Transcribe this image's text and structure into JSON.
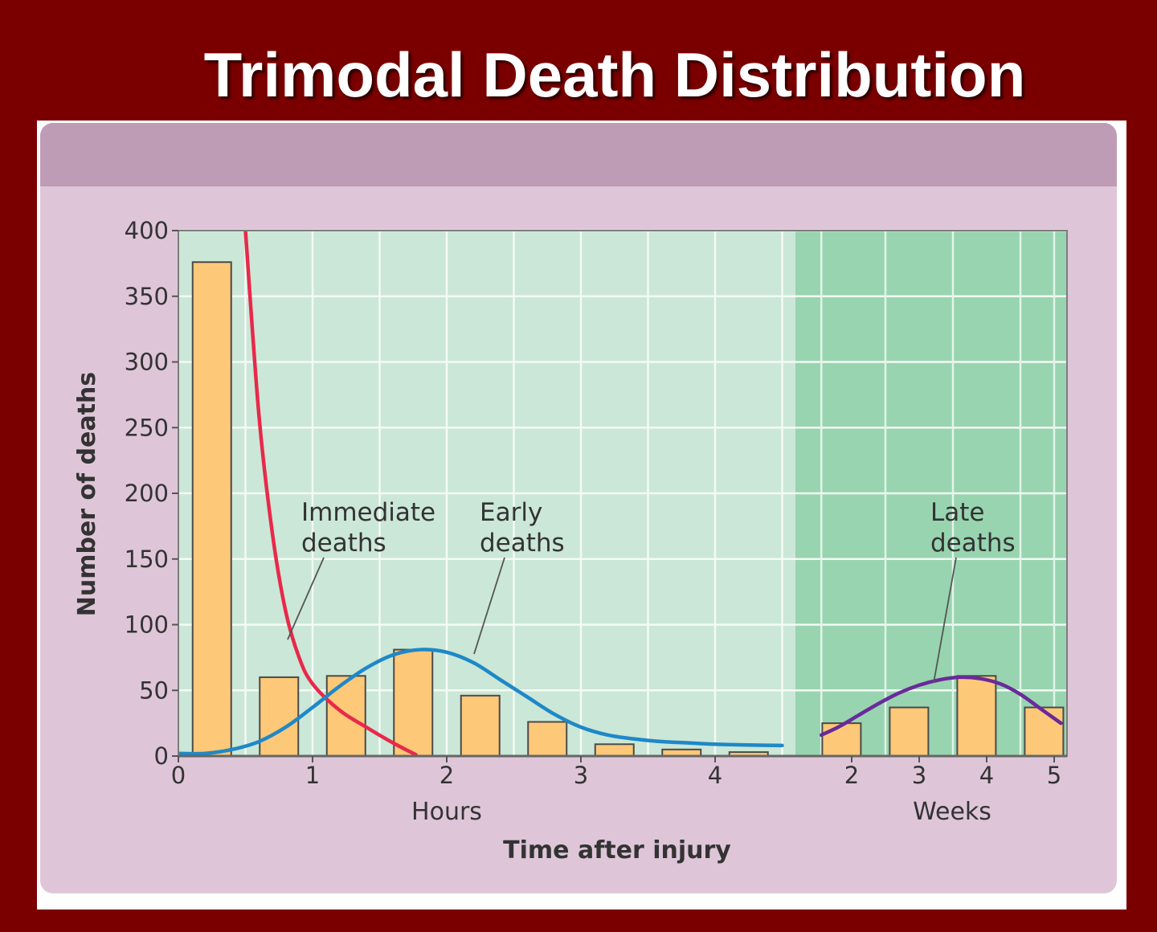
{
  "slide": {
    "title": "Trimodal Death Distribution"
  },
  "colors": {
    "background": "#7a0000",
    "panel": "#dec6d8",
    "panel_header": "#bf9cb6",
    "hours_region": "#cbe7d7",
    "weeks_region": "#98d4b0",
    "bar": "#fdc878",
    "immediate_curve": "#e8294a",
    "early_curve": "#1e88c8",
    "late_curve": "#6a2a9a"
  },
  "chart_data": {
    "type": "bar",
    "title": "Trimodal Death Distribution",
    "ylabel": "Number of deaths",
    "xlabel": "Time after injury",
    "ylim": [
      0,
      400
    ],
    "yticks": [
      0,
      50,
      100,
      150,
      200,
      250,
      300,
      350,
      400
    ],
    "grid": true,
    "hours": {
      "label": "Hours",
      "xlim": [
        0,
        4.55
      ],
      "ticks": [
        "0",
        "1",
        "2",
        "3",
        "4"
      ],
      "bars": [
        {
          "x": 0.25,
          "value": 376
        },
        {
          "x": 0.75,
          "value": 60
        },
        {
          "x": 1.25,
          "value": 61
        },
        {
          "x": 1.75,
          "value": 81
        },
        {
          "x": 2.25,
          "value": 46
        },
        {
          "x": 2.75,
          "value": 26
        },
        {
          "x": 3.25,
          "value": 9
        },
        {
          "x": 3.75,
          "value": 5
        },
        {
          "x": 4.25,
          "value": 3
        }
      ]
    },
    "weeks": {
      "label": "Weeks",
      "xlim": [
        1.4,
        5.1
      ],
      "ticks": [
        "2",
        "3",
        "4",
        "5"
      ],
      "bars": [
        {
          "x": 1.85,
          "value": 25
        },
        {
          "x": 2.85,
          "value": 37
        },
        {
          "x": 3.85,
          "value": 61
        },
        {
          "x": 4.85,
          "value": 37
        }
      ]
    },
    "curves": [
      {
        "name": "Immediate deaths",
        "region": "hours",
        "points": [
          [
            0.5,
            400
          ],
          [
            0.6,
            260
          ],
          [
            0.7,
            170
          ],
          [
            0.8,
            110
          ],
          [
            0.9,
            75
          ],
          [
            1.0,
            55
          ],
          [
            1.2,
            35
          ],
          [
            1.4,
            22
          ],
          [
            1.6,
            10
          ],
          [
            1.77,
            1
          ]
        ]
      },
      {
        "name": "Early deaths",
        "region": "hours",
        "points": [
          [
            0.0,
            2
          ],
          [
            0.2,
            2
          ],
          [
            0.4,
            5
          ],
          [
            0.6,
            11
          ],
          [
            0.8,
            22
          ],
          [
            1.0,
            37
          ],
          [
            1.2,
            53
          ],
          [
            1.4,
            67
          ],
          [
            1.6,
            77
          ],
          [
            1.8,
            81
          ],
          [
            2.0,
            79
          ],
          [
            2.2,
            71
          ],
          [
            2.4,
            58
          ],
          [
            2.6,
            45
          ],
          [
            2.8,
            32
          ],
          [
            3.0,
            22
          ],
          [
            3.2,
            16
          ],
          [
            3.4,
            13
          ],
          [
            3.6,
            11
          ],
          [
            3.8,
            10
          ],
          [
            4.0,
            9
          ],
          [
            4.2,
            8.5
          ],
          [
            4.5,
            8
          ]
        ]
      },
      {
        "name": "Late deaths",
        "region": "weeks",
        "points": [
          [
            1.55,
            16
          ],
          [
            1.8,
            22
          ],
          [
            2.1,
            31
          ],
          [
            2.4,
            40
          ],
          [
            2.7,
            48
          ],
          [
            3.0,
            54
          ],
          [
            3.3,
            58
          ],
          [
            3.6,
            60
          ],
          [
            3.9,
            59
          ],
          [
            4.2,
            55
          ],
          [
            4.5,
            47
          ],
          [
            4.8,
            36
          ],
          [
            5.1,
            25
          ]
        ]
      }
    ],
    "annotations": [
      {
        "lines": [
          "Immediate",
          "deaths"
        ],
        "curve": "Immediate deaths"
      },
      {
        "lines": [
          "Early",
          "deaths"
        ],
        "curve": "Early deaths"
      },
      {
        "lines": [
          "Late",
          "deaths"
        ],
        "curve": "Late deaths"
      }
    ]
  }
}
